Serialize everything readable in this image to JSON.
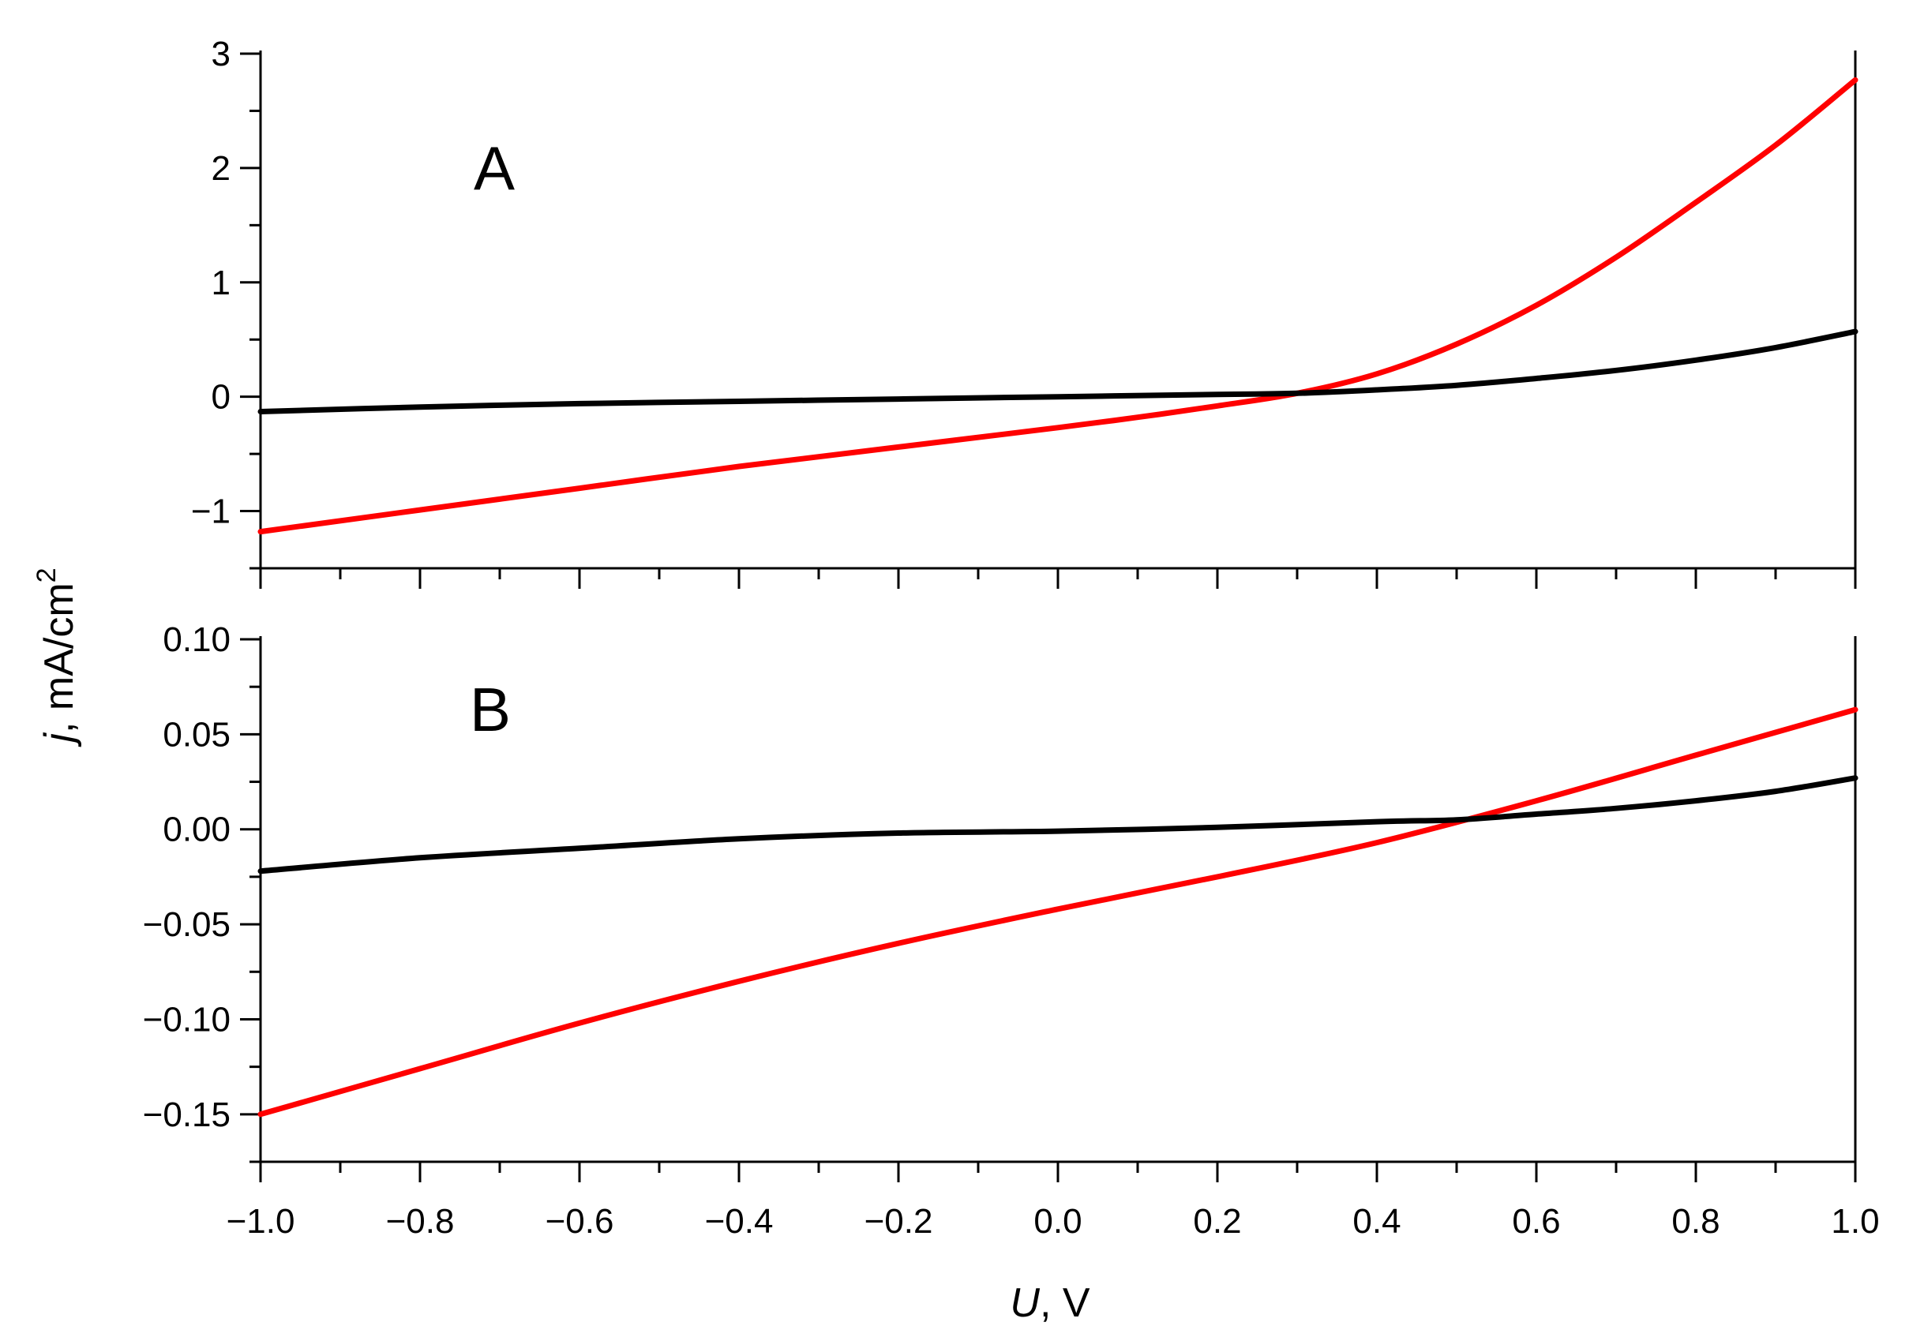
{
  "chart_data": {
    "type": "line",
    "xlabel": {
      "var": "U",
      "unit": ", V"
    },
    "ylabel": {
      "var": "j",
      "unit": ", mA/cm",
      "sup": "2"
    },
    "xlim": [
      -1.0,
      1.0
    ],
    "x_ticks": [
      -1.0,
      -0.8,
      -0.6,
      -0.4,
      -0.2,
      0.0,
      0.2,
      0.4,
      0.6,
      0.8,
      1.0
    ],
    "x_tick_labels": [
      "−1.0",
      "−0.8",
      "−0.6",
      "−0.4",
      "−0.2",
      "0.0",
      "0.2",
      "0.4",
      "0.6",
      "0.8",
      "1.0"
    ],
    "panels": [
      {
        "label": "A",
        "ylim": [
          -1.5,
          3.0
        ],
        "y_ticks": [
          -1,
          0,
          1,
          2,
          3
        ],
        "y_tick_labels": [
          "−1",
          "0",
          "1",
          "2",
          "3"
        ],
        "y_minor_step": 0.5,
        "series": [
          {
            "color": "#ff0000",
            "x": [
              -1.0,
              -0.8,
              -0.6,
              -0.4,
              -0.2,
              0.0,
              0.1,
              0.2,
              0.3,
              0.4,
              0.5,
              0.6,
              0.7,
              0.8,
              0.9,
              1.0
            ],
            "y": [
              -1.18,
              -0.99,
              -0.8,
              -0.61,
              -0.44,
              -0.27,
              -0.18,
              -0.08,
              0.03,
              0.2,
              0.46,
              0.8,
              1.22,
              1.7,
              2.2,
              2.77
            ]
          },
          {
            "color": "#000000",
            "x": [
              -1.0,
              -0.8,
              -0.6,
              -0.4,
              -0.2,
              0.0,
              0.2,
              0.3,
              0.4,
              0.5,
              0.6,
              0.7,
              0.8,
              0.9,
              1.0
            ],
            "y": [
              -0.13,
              -0.09,
              -0.06,
              -0.04,
              -0.02,
              0.0,
              0.02,
              0.03,
              0.06,
              0.1,
              0.16,
              0.23,
              0.32,
              0.43,
              0.57
            ]
          }
        ]
      },
      {
        "label": "B",
        "ylim": [
          -0.175,
          0.1
        ],
        "y_ticks": [
          -0.15,
          -0.1,
          -0.05,
          0.0,
          0.05,
          0.1
        ],
        "y_tick_labels": [
          "−0.15",
          "−0.10",
          "−0.05",
          "0.00",
          "0.05",
          "0.10"
        ],
        "y_minor_step": 0.025,
        "series": [
          {
            "color": "#ff0000",
            "x": [
              -1.0,
              -0.8,
              -0.6,
              -0.4,
              -0.2,
              0.0,
              0.2,
              0.4,
              0.6,
              0.8,
              1.0
            ],
            "y": [
              -0.15,
              -0.126,
              -0.102,
              -0.08,
              -0.06,
              -0.042,
              -0.025,
              -0.007,
              0.015,
              0.039,
              0.063
            ]
          },
          {
            "color": "#000000",
            "x": [
              -1.0,
              -0.8,
              -0.6,
              -0.4,
              -0.2,
              0.0,
              0.2,
              0.4,
              0.5,
              0.6,
              0.7,
              0.8,
              0.9,
              1.0
            ],
            "y": [
              -0.022,
              -0.015,
              -0.01,
              -0.005,
              -0.002,
              -0.001,
              0.001,
              0.004,
              0.005,
              0.008,
              0.011,
              0.015,
              0.02,
              0.027
            ]
          }
        ]
      }
    ]
  }
}
